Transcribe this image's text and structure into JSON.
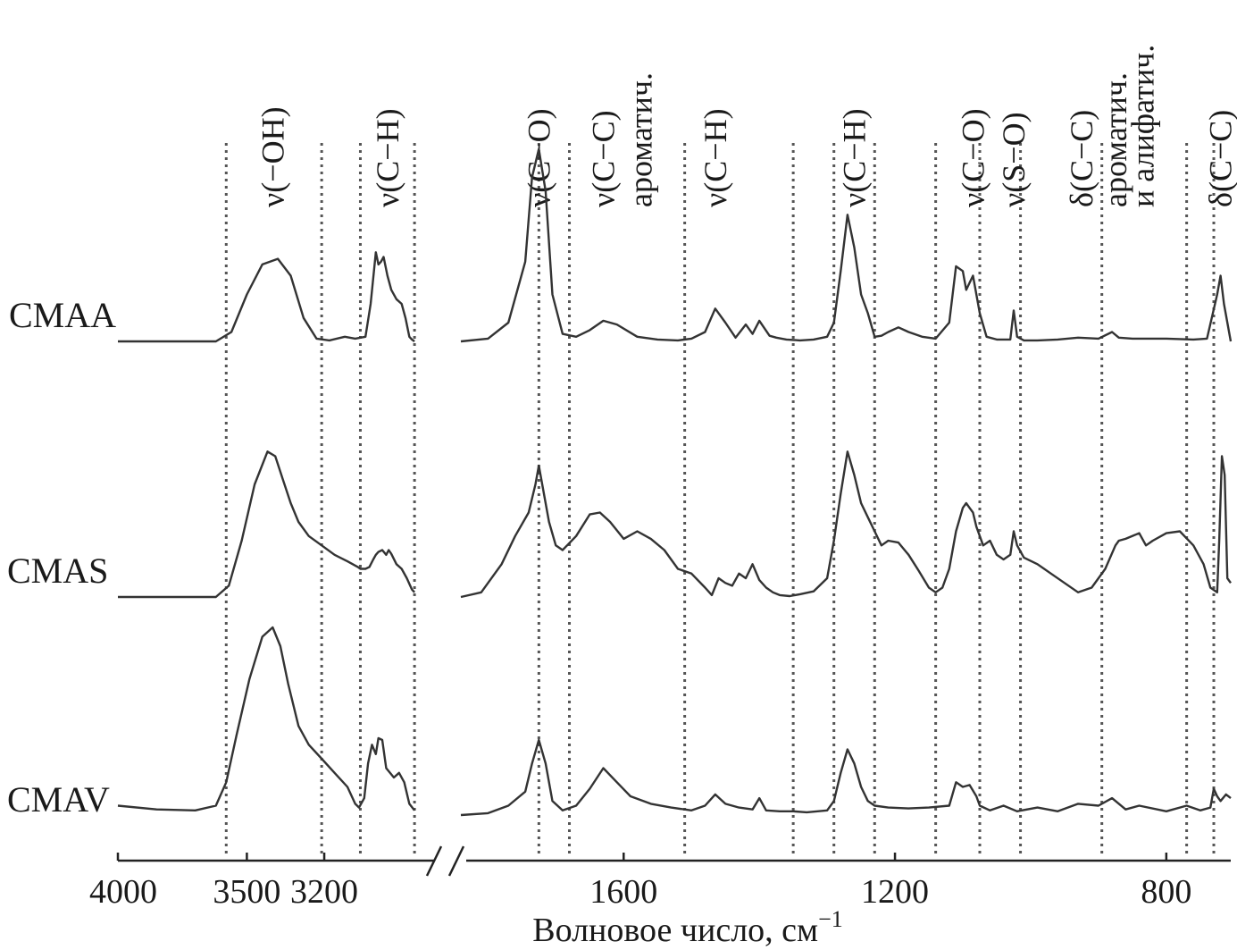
{
  "chart_data": {
    "type": "line",
    "xlabel": "Волновое число, см",
    "xlabel_superscript": "−1",
    "x_axis_direction": "reversed",
    "x_axis_break": "//",
    "xlim_left": [
      4000,
      2750
    ],
    "xlim_right": [
      1840,
      705
    ],
    "tick_labels": [
      "4000",
      "3500",
      "3200",
      "1600",
      "1200",
      "800"
    ],
    "tick_values": [
      4000,
      3500,
      3200,
      1600,
      1200,
      800
    ],
    "grid": false,
    "band_labels": [
      {
        "text": "ν(−OH)",
        "x": 3400
      },
      {
        "text": "ν(C−H)",
        "x": 2955
      },
      {
        "text": "ν(C−O)",
        "x": 1725
      },
      {
        "text": "ν(C−C)",
        "x": 1630
      },
      {
        "text": "ароматич.",
        "x": 1575
      },
      {
        "text": "ν(C−H)",
        "x": 1465
      },
      {
        "text": "ν(C−H)",
        "x": 1260
      },
      {
        "text": "ν(C−O)",
        "x": 1085
      },
      {
        "text": "ν(S−O)",
        "x": 1025
      },
      {
        "text": "δ(C−C)",
        "x": 925
      },
      {
        "text": "ароматич.",
        "x": 875
      },
      {
        "text": "и алифатич.",
        "x": 835
      },
      {
        "text": "δ(C−C)",
        "x": 720
      }
    ],
    "guide_lines": [
      3580,
      3210,
      3060,
      2850,
      1725,
      1680,
      1510,
      1350,
      1290,
      1230,
      1140,
      1075,
      1015,
      895,
      770,
      730
    ],
    "series": [
      {
        "name": "CMAA",
        "segments": [
          {
            "x": [
              4000,
              3800,
              3620,
              3560,
              3500,
              3440,
              3380,
              3330,
              3280,
              3230,
              3180,
              3120,
              3080,
              3040,
              3020,
              3000,
              2990,
              2980,
              2970,
              2955,
              2940,
              2920,
              2900,
              2885,
              2870,
              2860,
              2850
            ],
            "y": [
              0.0,
              0.0,
              0.0,
              0.1,
              0.5,
              0.82,
              0.88,
              0.7,
              0.25,
              0.03,
              0.01,
              0.05,
              0.03,
              0.05,
              0.4,
              0.95,
              0.82,
              0.85,
              0.9,
              0.7,
              0.55,
              0.45,
              0.4,
              0.25,
              0.05,
              0.02,
              0.0
            ]
          },
          {
            "x": [
              1840,
              1800,
              1770,
              1745,
              1735,
              1725,
              1715,
              1705,
              1690,
              1670,
              1650,
              1630,
              1610,
              1580,
              1550,
              1520,
              1500,
              1480,
              1465,
              1450,
              1435,
              1420,
              1410,
              1400,
              1385,
              1375,
              1360,
              1340,
              1320,
              1300,
              1290,
              1280,
              1270,
              1260,
              1250,
              1240,
              1230,
              1220,
              1210,
              1195,
              1180,
              1160,
              1140,
              1120,
              1110,
              1100,
              1095,
              1085,
              1075,
              1065,
              1050,
              1030,
              1025,
              1020,
              1010,
              990,
              960,
              930,
              900,
              880,
              870,
              850,
              800,
              760,
              740,
              725,
              720,
              715,
              705
            ],
            "y": [
              0.0,
              0.03,
              0.2,
              0.85,
              1.75,
              2.05,
              1.6,
              0.5,
              0.08,
              0.05,
              0.12,
              0.22,
              0.18,
              0.05,
              0.02,
              0.01,
              0.03,
              0.1,
              0.35,
              0.2,
              0.04,
              0.18,
              0.08,
              0.22,
              0.06,
              0.04,
              0.02,
              0.01,
              0.02,
              0.05,
              0.2,
              0.75,
              1.35,
              1.0,
              0.5,
              0.3,
              0.05,
              0.06,
              0.1,
              0.15,
              0.1,
              0.05,
              0.03,
              0.2,
              0.8,
              0.75,
              0.55,
              0.7,
              0.3,
              0.05,
              0.02,
              0.02,
              0.33,
              0.05,
              0.01,
              0.01,
              0.02,
              0.04,
              0.03,
              0.1,
              0.04,
              0.03,
              0.03,
              0.02,
              0.03,
              0.5,
              0.7,
              0.4,
              0.0
            ]
          }
        ]
      },
      {
        "name": "CMAS",
        "segments": [
          {
            "x": [
              4000,
              3800,
              3620,
              3570,
              3520,
              3470,
              3420,
              3390,
              3360,
              3330,
              3300,
              3260,
              3210,
              3160,
              3110,
              3070,
              3060,
              3040,
              3025,
              3010,
              3000,
              2990,
              2975,
              2960,
              2950,
              2940,
              2920,
              2900,
              2880,
              2860,
              2850
            ],
            "y": [
              0.0,
              0.0,
              0.0,
              0.12,
              0.6,
              1.2,
              1.55,
              1.5,
              1.25,
              1.0,
              0.8,
              0.65,
              0.55,
              0.45,
              0.38,
              0.32,
              0.3,
              0.3,
              0.32,
              0.4,
              0.45,
              0.48,
              0.5,
              0.45,
              0.5,
              0.46,
              0.35,
              0.3,
              0.2,
              0.08,
              0.05
            ]
          },
          {
            "x": [
              1840,
              1810,
              1780,
              1760,
              1740,
              1730,
              1725,
              1720,
              1710,
              1700,
              1690,
              1670,
              1650,
              1635,
              1620,
              1600,
              1580,
              1560,
              1540,
              1520,
              1500,
              1480,
              1470,
              1460,
              1450,
              1440,
              1430,
              1420,
              1410,
              1400,
              1390,
              1380,
              1370,
              1355,
              1340,
              1320,
              1300,
              1290,
              1280,
              1270,
              1260,
              1250,
              1240,
              1230,
              1220,
              1210,
              1195,
              1180,
              1165,
              1150,
              1140,
              1130,
              1120,
              1110,
              1100,
              1095,
              1090,
              1085,
              1080,
              1070,
              1060,
              1050,
              1040,
              1030,
              1025,
              1020,
              1010,
              990,
              970,
              950,
              930,
              910,
              890,
              875,
              870,
              860,
              840,
              830,
              820,
              800,
              780,
              760,
              745,
              735,
              725,
              722,
              718,
              714,
              710,
              705
            ],
            "y": [
              0.0,
              0.05,
              0.35,
              0.65,
              0.9,
              1.2,
              1.4,
              1.2,
              0.8,
              0.55,
              0.5,
              0.65,
              0.88,
              0.9,
              0.8,
              0.62,
              0.7,
              0.62,
              0.5,
              0.3,
              0.25,
              0.1,
              0.02,
              0.2,
              0.15,
              0.12,
              0.25,
              0.2,
              0.35,
              0.18,
              0.1,
              0.05,
              0.02,
              0.01,
              0.03,
              0.06,
              0.2,
              0.6,
              1.1,
              1.55,
              1.3,
              1.0,
              0.85,
              0.7,
              0.55,
              0.6,
              0.58,
              0.45,
              0.28,
              0.1,
              0.05,
              0.1,
              0.3,
              0.7,
              0.95,
              1.0,
              0.95,
              0.9,
              0.75,
              0.55,
              0.6,
              0.45,
              0.4,
              0.45,
              0.7,
              0.55,
              0.42,
              0.35,
              0.25,
              0.15,
              0.05,
              0.1,
              0.3,
              0.55,
              0.6,
              0.62,
              0.68,
              0.55,
              0.6,
              0.68,
              0.7,
              0.55,
              0.35,
              0.1,
              0.05,
              0.6,
              1.5,
              1.3,
              0.2,
              0.15
            ]
          }
        ]
      },
      {
        "name": "CMAV",
        "segments": [
          {
            "x": [
              4000,
              3850,
              3700,
              3620,
              3580,
              3540,
              3490,
              3440,
              3400,
              3370,
              3340,
              3300,
              3260,
              3210,
              3160,
              3110,
              3080,
              3065,
              3045,
              3030,
              3015,
              3000,
              2990,
              2975,
              2960,
              2945,
              2930,
              2910,
              2890,
              2870,
              2850
            ],
            "y": [
              0.1,
              0.06,
              0.05,
              0.1,
              0.35,
              0.85,
              1.45,
              1.9,
              2.0,
              1.8,
              1.4,
              0.95,
              0.75,
              0.6,
              0.45,
              0.3,
              0.12,
              0.08,
              0.18,
              0.55,
              0.75,
              0.65,
              0.82,
              0.8,
              0.5,
              0.45,
              0.4,
              0.45,
              0.35,
              0.12,
              0.05
            ]
          },
          {
            "x": [
              1840,
              1800,
              1770,
              1745,
              1735,
              1725,
              1715,
              1705,
              1690,
              1670,
              1650,
              1630,
              1610,
              1590,
              1560,
              1530,
              1500,
              1480,
              1465,
              1450,
              1430,
              1410,
              1400,
              1390,
              1370,
              1350,
              1330,
              1300,
              1290,
              1280,
              1270,
              1260,
              1250,
              1240,
              1230,
              1210,
              1180,
              1150,
              1120,
              1110,
              1100,
              1090,
              1080,
              1075,
              1060,
              1040,
              1020,
              990,
              960,
              930,
              900,
              880,
              860,
              840,
              800,
              770,
              750,
              735,
              730,
              725,
              720,
              712,
              705
            ],
            "y": [
              0.0,
              0.02,
              0.1,
              0.25,
              0.55,
              0.8,
              0.55,
              0.15,
              0.05,
              0.1,
              0.28,
              0.5,
              0.35,
              0.2,
              0.12,
              0.08,
              0.05,
              0.1,
              0.22,
              0.12,
              0.08,
              0.06,
              0.18,
              0.05,
              0.04,
              0.04,
              0.03,
              0.05,
              0.15,
              0.45,
              0.7,
              0.55,
              0.3,
              0.15,
              0.1,
              0.08,
              0.07,
              0.08,
              0.1,
              0.35,
              0.3,
              0.32,
              0.2,
              0.1,
              0.05,
              0.1,
              0.04,
              0.08,
              0.04,
              0.12,
              0.1,
              0.18,
              0.06,
              0.1,
              0.04,
              0.1,
              0.05,
              0.08,
              0.28,
              0.2,
              0.15,
              0.22,
              0.18
            ]
          }
        ]
      }
    ]
  }
}
